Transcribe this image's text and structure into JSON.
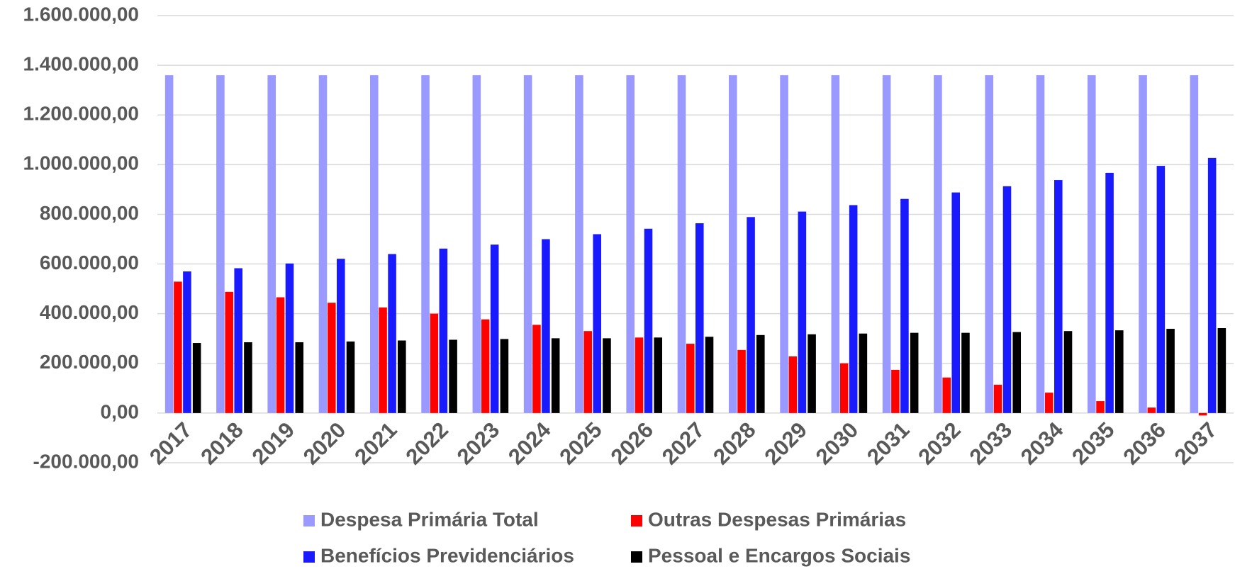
{
  "chart_data": {
    "type": "bar",
    "categories": [
      "2017",
      "2018",
      "2019",
      "2020",
      "2021",
      "2022",
      "2023",
      "2024",
      "2025",
      "2026",
      "2027",
      "2028",
      "2029",
      "2030",
      "2031",
      "2032",
      "2033",
      "2034",
      "2035",
      "2036",
      "2037"
    ],
    "series": [
      {
        "name": "Despesa Primária Total",
        "color": "#9999ff",
        "values": [
          1360000,
          1360000,
          1360000,
          1360000,
          1360000,
          1360000,
          1360000,
          1360000,
          1360000,
          1360000,
          1360000,
          1360000,
          1360000,
          1360000,
          1360000,
          1360000,
          1360000,
          1360000,
          1360000,
          1360000,
          1360000
        ]
      },
      {
        "name": "Outras Despesas Primárias",
        "color": "#ff0000",
        "values": [
          529000,
          488000,
          466000,
          444000,
          425000,
          400000,
          377000,
          355000,
          330000,
          304000,
          279000,
          254000,
          228000,
          200000,
          174000,
          143000,
          114000,
          82000,
          48000,
          22000,
          -10000
        ]
      },
      {
        "name": "Benefícios Previdenciários",
        "color": "#1a1aff",
        "values": [
          570000,
          583000,
          602000,
          621000,
          640000,
          662000,
          678000,
          700000,
          720000,
          742000,
          764000,
          789000,
          811000,
          837000,
          862000,
          888000,
          913000,
          938000,
          967000,
          995000,
          1027000
        ]
      },
      {
        "name": "Pessoal e Encargos Sociais",
        "color": "#000000",
        "values": [
          282000,
          285000,
          285000,
          288000,
          292000,
          295000,
          298000,
          301000,
          301000,
          304000,
          307000,
          314000,
          317000,
          320000,
          323000,
          323000,
          326000,
          330000,
          333000,
          339000,
          342000
        ]
      }
    ],
    "ylim": [
      -200000,
      1600000
    ],
    "yticks": [
      {
        "value": -200000,
        "label": "-200.000,00"
      },
      {
        "value": 0,
        "label": "0,00"
      },
      {
        "value": 200000,
        "label": "200.000,00"
      },
      {
        "value": 400000,
        "label": "400.000,00"
      },
      {
        "value": 600000,
        "label": "600.000,00"
      },
      {
        "value": 800000,
        "label": "800.000,00"
      },
      {
        "value": 1000000,
        "label": "1.000.000,00"
      },
      {
        "value": 1200000,
        "label": "1.200.000,00"
      },
      {
        "value": 1400000,
        "label": "1.400.000,00"
      },
      {
        "value": 1600000,
        "label": "1.600.000,00"
      }
    ],
    "grid": true,
    "legend": "bottom"
  }
}
